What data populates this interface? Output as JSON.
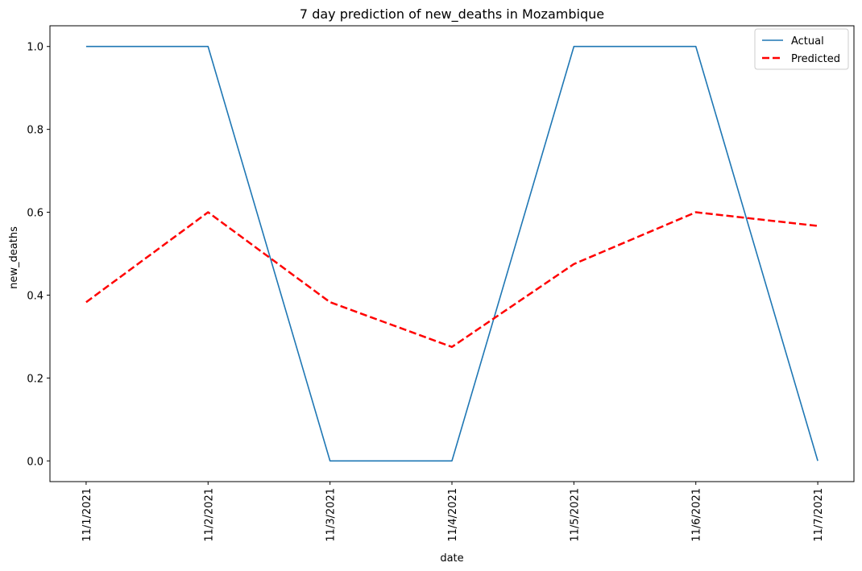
{
  "chart_data": {
    "type": "line",
    "title": "7 day prediction of new_deaths in Mozambique",
    "xlabel": "date",
    "ylabel": "new_deaths",
    "categories": [
      "11/1/2021",
      "11/2/2021",
      "11/3/2021",
      "11/4/2021",
      "11/5/2021",
      "11/6/2021",
      "11/7/2021"
    ],
    "ylim": [
      -0.05,
      1.05
    ],
    "yticks": [
      "0.0",
      "0.2",
      "0.4",
      "0.6",
      "0.8",
      "1.0"
    ],
    "ytick_values": [
      0.0,
      0.2,
      0.4,
      0.6,
      0.8,
      1.0
    ],
    "grid": false,
    "legend_position": "top-right",
    "series": [
      {
        "name": "Actual",
        "values": [
          1.0,
          1.0,
          0.0,
          0.0,
          1.0,
          1.0,
          0.0
        ],
        "color": "#1f77b4",
        "style": "solid"
      },
      {
        "name": "Predicted",
        "values": [
          0.383,
          0.6,
          0.383,
          0.275,
          0.475,
          0.6,
          0.567
        ],
        "color": "#ff0000",
        "style": "dashed"
      }
    ]
  }
}
